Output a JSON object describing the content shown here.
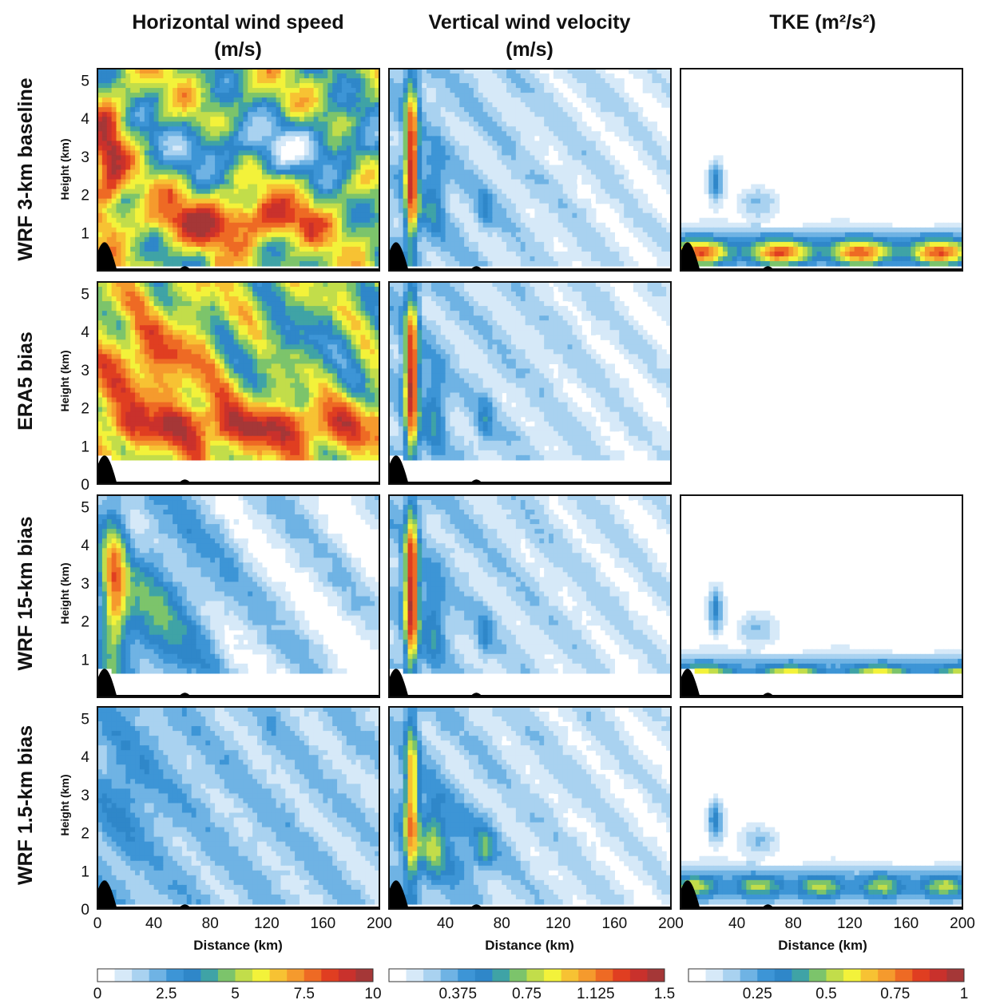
{
  "figure": {
    "columns": [
      {
        "title_line1": "Horizontal wind speed",
        "title_line2": "(m/s)",
        "key": "hws"
      },
      {
        "title_line1": "Vertical wind velocity",
        "title_line2": "(m/s)",
        "key": "vwv"
      },
      {
        "title_line1": "TKE (m²/s²)",
        "title_line2": "",
        "key": "tke"
      }
    ],
    "rows": [
      {
        "label": "WRF 3-km baseline"
      },
      {
        "label": "ERA5 bias"
      },
      {
        "label": "WRF 15-km bias"
      },
      {
        "label": "WRF 1.5-km bias"
      }
    ],
    "ylabel": "Height (km)",
    "xlabel": "Distance (km)",
    "colorscale": [
      "#ffffff",
      "#d6e9f8",
      "#a9d2f0",
      "#6fb3e4",
      "#3d95d6",
      "#2f87c9",
      "#3fa3a6",
      "#7cc46b",
      "#c2dd4a",
      "#f3f23a",
      "#f7c233",
      "#f59a2d",
      "#ee6a24",
      "#e03e21",
      "#c9312c",
      "#a53737"
    ]
  },
  "chart_data": {
    "type": "heatmap",
    "xlabel": "Distance (km)",
    "ylabel": "Height (km)",
    "xlim": [
      0,
      200
    ],
    "ylim": [
      0,
      5.3
    ],
    "x_ticks": [
      0,
      40,
      80,
      120,
      160,
      200
    ],
    "y_ticks": [
      0,
      1,
      2,
      3,
      4,
      5
    ],
    "x_tick_labels": {
      "col1": [
        "0",
        "40",
        "80",
        "120",
        "160",
        "200"
      ],
      "col2": [
        "40",
        "80",
        "120",
        "160",
        "200"
      ],
      "col3": [
        "40",
        "80",
        "120",
        "160",
        "200"
      ]
    },
    "y_tick_labels": {
      "row1": [
        "1",
        "2",
        "3",
        "4",
        "5"
      ],
      "row2": [
        "0",
        "1",
        "2",
        "3",
        "4",
        "5"
      ],
      "row3": [
        "1",
        "2",
        "3",
        "4",
        "5"
      ],
      "row4": [
        "0",
        "1",
        "2",
        "3",
        "4",
        "5"
      ]
    },
    "colorbars": [
      {
        "variable": "Horizontal wind speed",
        "min": 0,
        "max": 10,
        "ticks": [
          0,
          2.5,
          5,
          7.5,
          10
        ],
        "tick_labels": [
          "0",
          "2.5",
          "5",
          "7.5",
          "10"
        ]
      },
      {
        "variable": "Vertical wind velocity",
        "min": 0,
        "max": 1.5,
        "ticks": [
          0.375,
          0.75,
          1.125,
          1.5
        ],
        "tick_labels": [
          "0.375",
          "0.75",
          "1.125",
          "1.5"
        ]
      },
      {
        "variable": "TKE",
        "min": 0,
        "max": 1,
        "ticks": [
          0.25,
          0.5,
          0.75,
          1
        ],
        "tick_labels": [
          "0.25",
          "0.5",
          "0.75",
          "1"
        ]
      }
    ],
    "terrain_peaks_km": [
      {
        "x": 5,
        "height": 0.75
      },
      {
        "x": 62,
        "height": 0.12
      }
    ],
    "panels": [
      {
        "row": 0,
        "col": 0,
        "present": true
      },
      {
        "row": 0,
        "col": 1,
        "present": true
      },
      {
        "row": 0,
        "col": 2,
        "present": true
      },
      {
        "row": 1,
        "col": 0,
        "present": true
      },
      {
        "row": 1,
        "col": 1,
        "present": true
      },
      {
        "row": 1,
        "col": 2,
        "present": false
      },
      {
        "row": 2,
        "col": 0,
        "present": true
      },
      {
        "row": 2,
        "col": 1,
        "present": true
      },
      {
        "row": 2,
        "col": 2,
        "present": true
      },
      {
        "row": 3,
        "col": 0,
        "present": true
      },
      {
        "row": 3,
        "col": 1,
        "present": true
      },
      {
        "row": 3,
        "col": 2,
        "present": true
      }
    ]
  }
}
